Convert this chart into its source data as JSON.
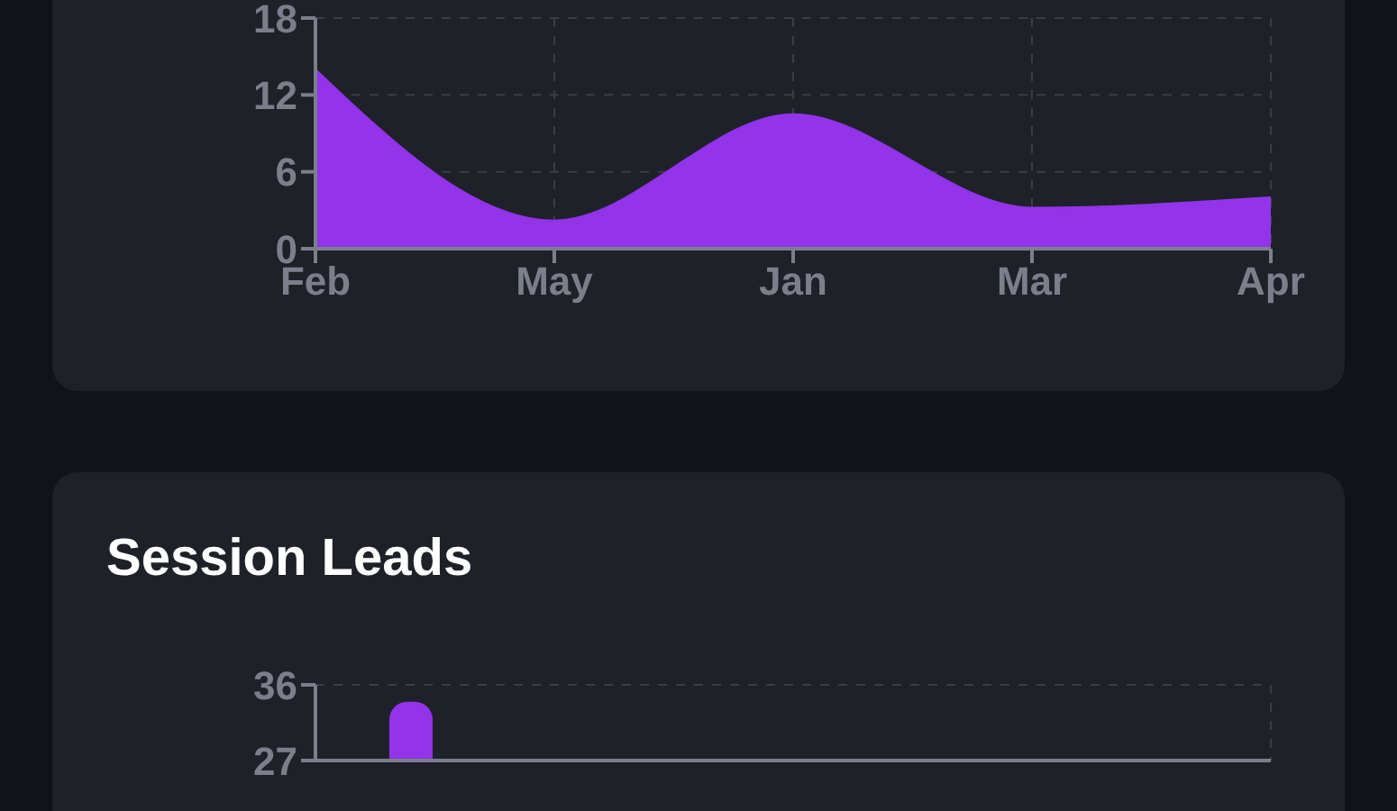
{
  "chart_data": [
    {
      "type": "area",
      "categories": [
        "Feb",
        "May",
        "Jan",
        "Mar",
        "Apr"
      ],
      "series": [
        {
          "color": "#9333ea",
          "values": [
            14,
            2.2,
            10.5,
            3.2,
            4
          ]
        }
      ],
      "ylim": [
        0,
        18
      ],
      "yticks": [
        0,
        6,
        12,
        18
      ],
      "grid": true
    },
    {
      "type": "bar",
      "title": "Session Leads",
      "categories": [
        null,
        null,
        null,
        null,
        null
      ],
      "series": [
        {
          "color": "#9333ea",
          "values": [
            34,
            null,
            null,
            null,
            null
          ]
        }
      ],
      "ylim": [
        27,
        36
      ],
      "yticks": [
        27,
        36
      ],
      "grid": true,
      "tick_labels": "y"
    }
  ]
}
